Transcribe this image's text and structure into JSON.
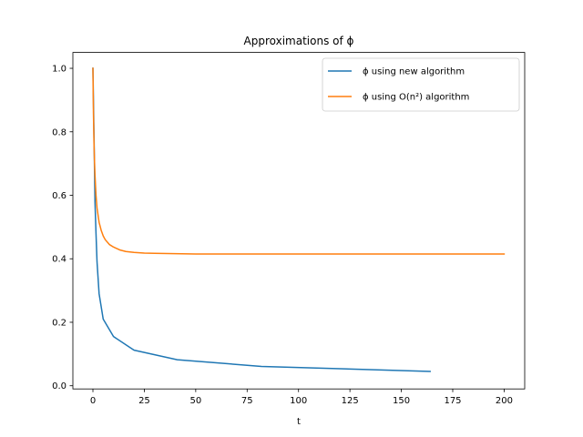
{
  "chart_data": {
    "type": "line",
    "title": "Approximations of ϕ",
    "xlabel": "t",
    "ylabel": "",
    "xlim": [
      -9.75,
      210
    ],
    "ylim": [
      -0.01,
      1.05
    ],
    "xticks": [
      0,
      25,
      50,
      75,
      100,
      125,
      150,
      175,
      200
    ],
    "yticks": [
      0.0,
      0.2,
      0.4,
      0.6,
      0.8,
      1.0
    ],
    "xtick_labels": [
      "0",
      "25",
      "50",
      "75",
      "100",
      "125",
      "150",
      "175",
      "200"
    ],
    "ytick_labels": [
      "0.0",
      "0.2",
      "0.4",
      "0.6",
      "0.8",
      "1.0"
    ],
    "grid": false,
    "legend_position": "top-right",
    "series": [
      {
        "name": "ϕ using new algorithm",
        "color": "#1f77b4",
        "x": [
          0,
          0.5,
          1,
          1.5,
          2,
          3,
          5,
          10,
          20,
          41,
          82,
          164
        ],
        "y": [
          1.0,
          0.8,
          0.58,
          0.48,
          0.39,
          0.29,
          0.21,
          0.155,
          0.112,
          0.082,
          0.061,
          0.045
        ]
      },
      {
        "name": "ϕ using O(n²) algorithm",
        "color": "#ff7f0e",
        "x": [
          0,
          0.25,
          0.5,
          0.75,
          1,
          1.5,
          2,
          3,
          4,
          5,
          6,
          8,
          10,
          13,
          16,
          20,
          25,
          30,
          40,
          50,
          75,
          100,
          150,
          200
        ],
        "y": [
          1.0,
          0.86,
          0.77,
          0.71,
          0.665,
          0.6,
          0.56,
          0.515,
          0.49,
          0.472,
          0.46,
          0.445,
          0.437,
          0.428,
          0.423,
          0.42,
          0.418,
          0.417,
          0.416,
          0.415,
          0.415,
          0.415,
          0.415,
          0.415
        ]
      }
    ]
  }
}
